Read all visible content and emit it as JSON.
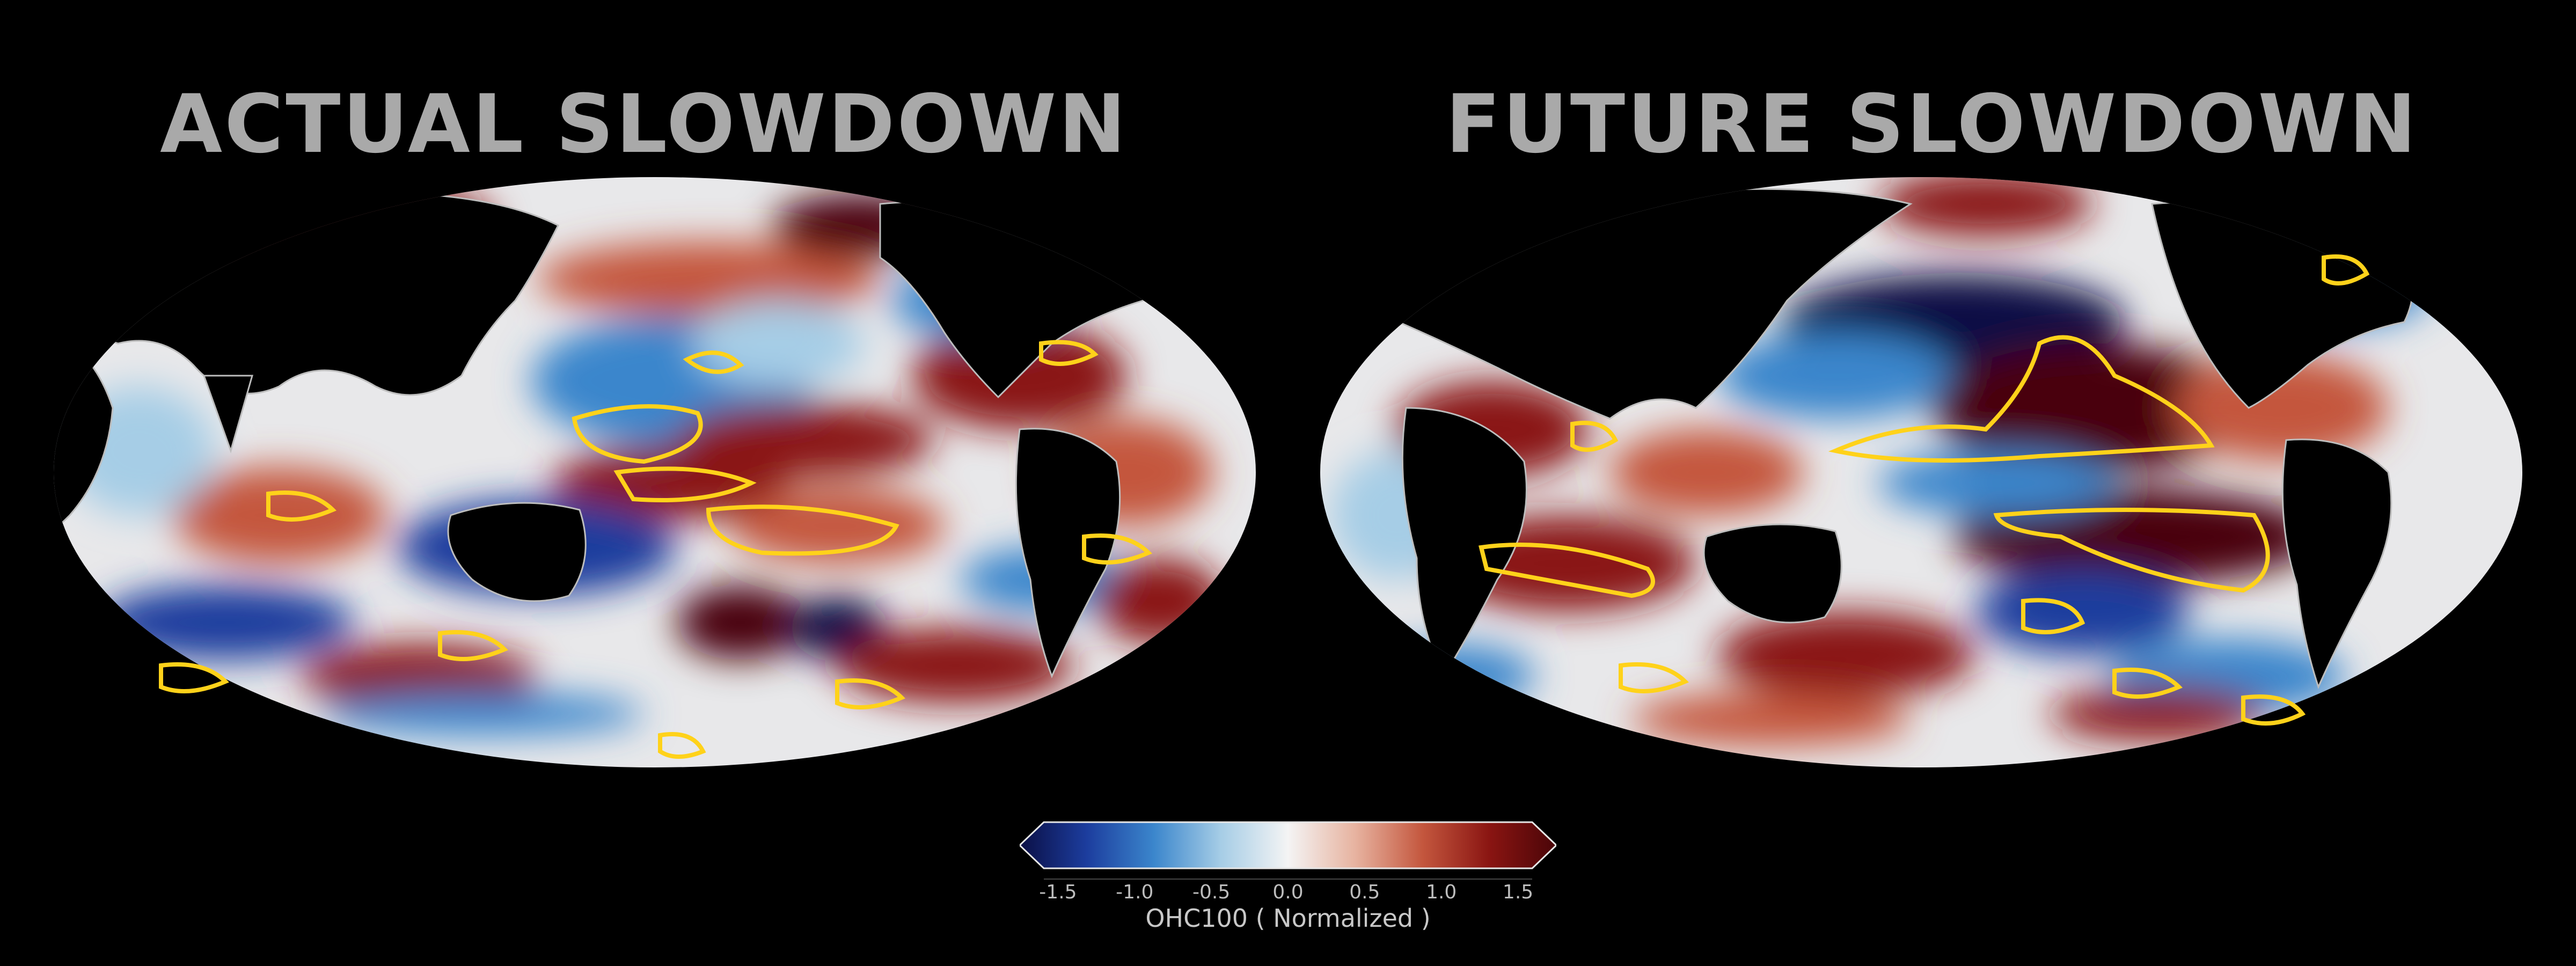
{
  "panels": {
    "left_title": "ACTUAL SLOWDOWN",
    "right_title": "FUTURE SLOWDOWN"
  },
  "colorbar": {
    "label": "OHC100 ( Normalized )",
    "ticks": [
      "-1.5",
      "-1.0",
      "-0.5",
      "0.0",
      "0.5",
      "1.0",
      "1.5"
    ],
    "range": [
      -1.75,
      1.75
    ],
    "extend": "both",
    "colors": [
      "#0b0f45",
      "#1c3d9e",
      "#3b86cc",
      "#a6cde6",
      "#f4f4f4",
      "#e7b3a0",
      "#c4573e",
      "#8a1512",
      "#4a0508"
    ]
  },
  "map_style": {
    "land_color": "#000000",
    "coastline_color": "#bdbdbd",
    "contour_color": "#ffd21a",
    "projection": "robinson",
    "left_center": "Pacific (~150E)",
    "right_center": "Indian Ocean (~60E)"
  }
}
